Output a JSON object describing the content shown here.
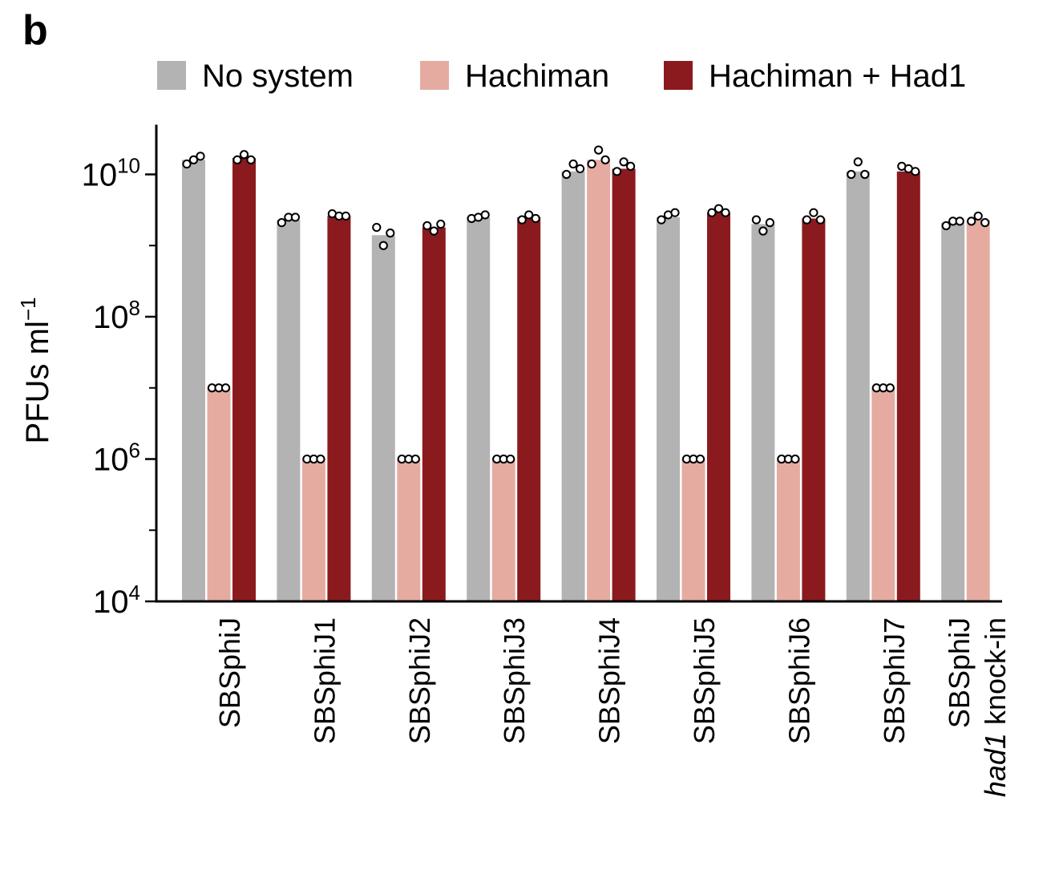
{
  "panel_label": "b",
  "chart_data": {
    "type": "bar",
    "y_scale": "log",
    "ylabel": "PFUs ml",
    "ylabel_superscript": "−1",
    "ylim": [
      10000,
      50000000000
    ],
    "y_ticks": [
      {
        "base": "10",
        "exp": "4",
        "value": 10000
      },
      {
        "base": "10",
        "exp": "6",
        "value": 1000000
      },
      {
        "base": "10",
        "exp": "8",
        "value": 100000000
      },
      {
        "base": "10",
        "exp": "10",
        "value": 10000000000
      }
    ],
    "legend_position": "top",
    "categories": [
      {
        "label": "SBSphiJ",
        "label2": ""
      },
      {
        "label": "SBSphiJ1",
        "label2": ""
      },
      {
        "label": "SBSphiJ2",
        "label2": ""
      },
      {
        "label": "SBSphiJ3",
        "label2": ""
      },
      {
        "label": "SBSphiJ4",
        "label2": ""
      },
      {
        "label": "SBSphiJ5",
        "label2": ""
      },
      {
        "label": "SBSphiJ6",
        "label2": ""
      },
      {
        "label": "SBSphiJ7",
        "label2": ""
      },
      {
        "label": "SBSphiJ",
        "label2_italic": "had1",
        "label2": " knock-in"
      }
    ],
    "series": [
      {
        "name": "No system",
        "color": "#b3b3b3",
        "values": [
          16000000000,
          2300000000,
          1400000000,
          2500000000,
          11000000000,
          2500000000,
          2000000000,
          11000000000,
          2100000000
        ],
        "points": [
          [
            14000000000,
            16000000000,
            18000000000
          ],
          [
            2100000000,
            2500000000,
            2500000000
          ],
          [
            1800000000,
            1000000000,
            1500000000
          ],
          [
            2400000000,
            2500000000,
            2700000000
          ],
          [
            10000000000,
            14000000000,
            12000000000
          ],
          [
            2300000000,
            2700000000,
            2900000000
          ],
          [
            2300000000,
            1600000000,
            2100000000
          ],
          [
            10000000000,
            15000000000,
            10000000000
          ],
          [
            1900000000,
            2200000000,
            2200000000
          ]
        ]
      },
      {
        "name": "Hachiman",
        "color": "#e5aba1",
        "values": [
          10000000,
          1000000,
          1000000,
          1000000,
          16000000000,
          1000000,
          1000000,
          10000000,
          2300000000
        ],
        "points": [
          [
            10000000,
            10000000,
            10000000
          ],
          [
            1000000,
            1000000,
            1000000
          ],
          [
            1000000,
            1000000,
            1000000
          ],
          [
            1000000,
            1000000,
            1000000
          ],
          [
            14000000000,
            22000000000,
            16000000000
          ],
          [
            1000000,
            1000000,
            1000000
          ],
          [
            1000000,
            1000000,
            1000000
          ],
          [
            10000000,
            10000000,
            10000000
          ],
          [
            2200000000,
            2600000000,
            2100000000
          ]
        ]
      },
      {
        "name": "Hachiman + Had1",
        "color": "#8b1a1e",
        "values": [
          17000000000,
          2600000000,
          1800000000,
          2500000000,
          12000000000,
          2900000000,
          2400000000,
          11000000000,
          null
        ],
        "points": [
          [
            16000000000,
            19000000000,
            16000000000
          ],
          [
            2800000000,
            2600000000,
            2600000000
          ],
          [
            1900000000,
            1600000000,
            2000000000
          ],
          [
            2300000000,
            2700000000,
            2400000000
          ],
          [
            11000000000,
            15000000000,
            13000000000
          ],
          [
            2900000000,
            3300000000,
            2900000000
          ],
          [
            2300000000,
            2900000000,
            2300000000
          ],
          [
            13000000000,
            12000000000,
            11000000000
          ],
          null
        ]
      }
    ]
  }
}
